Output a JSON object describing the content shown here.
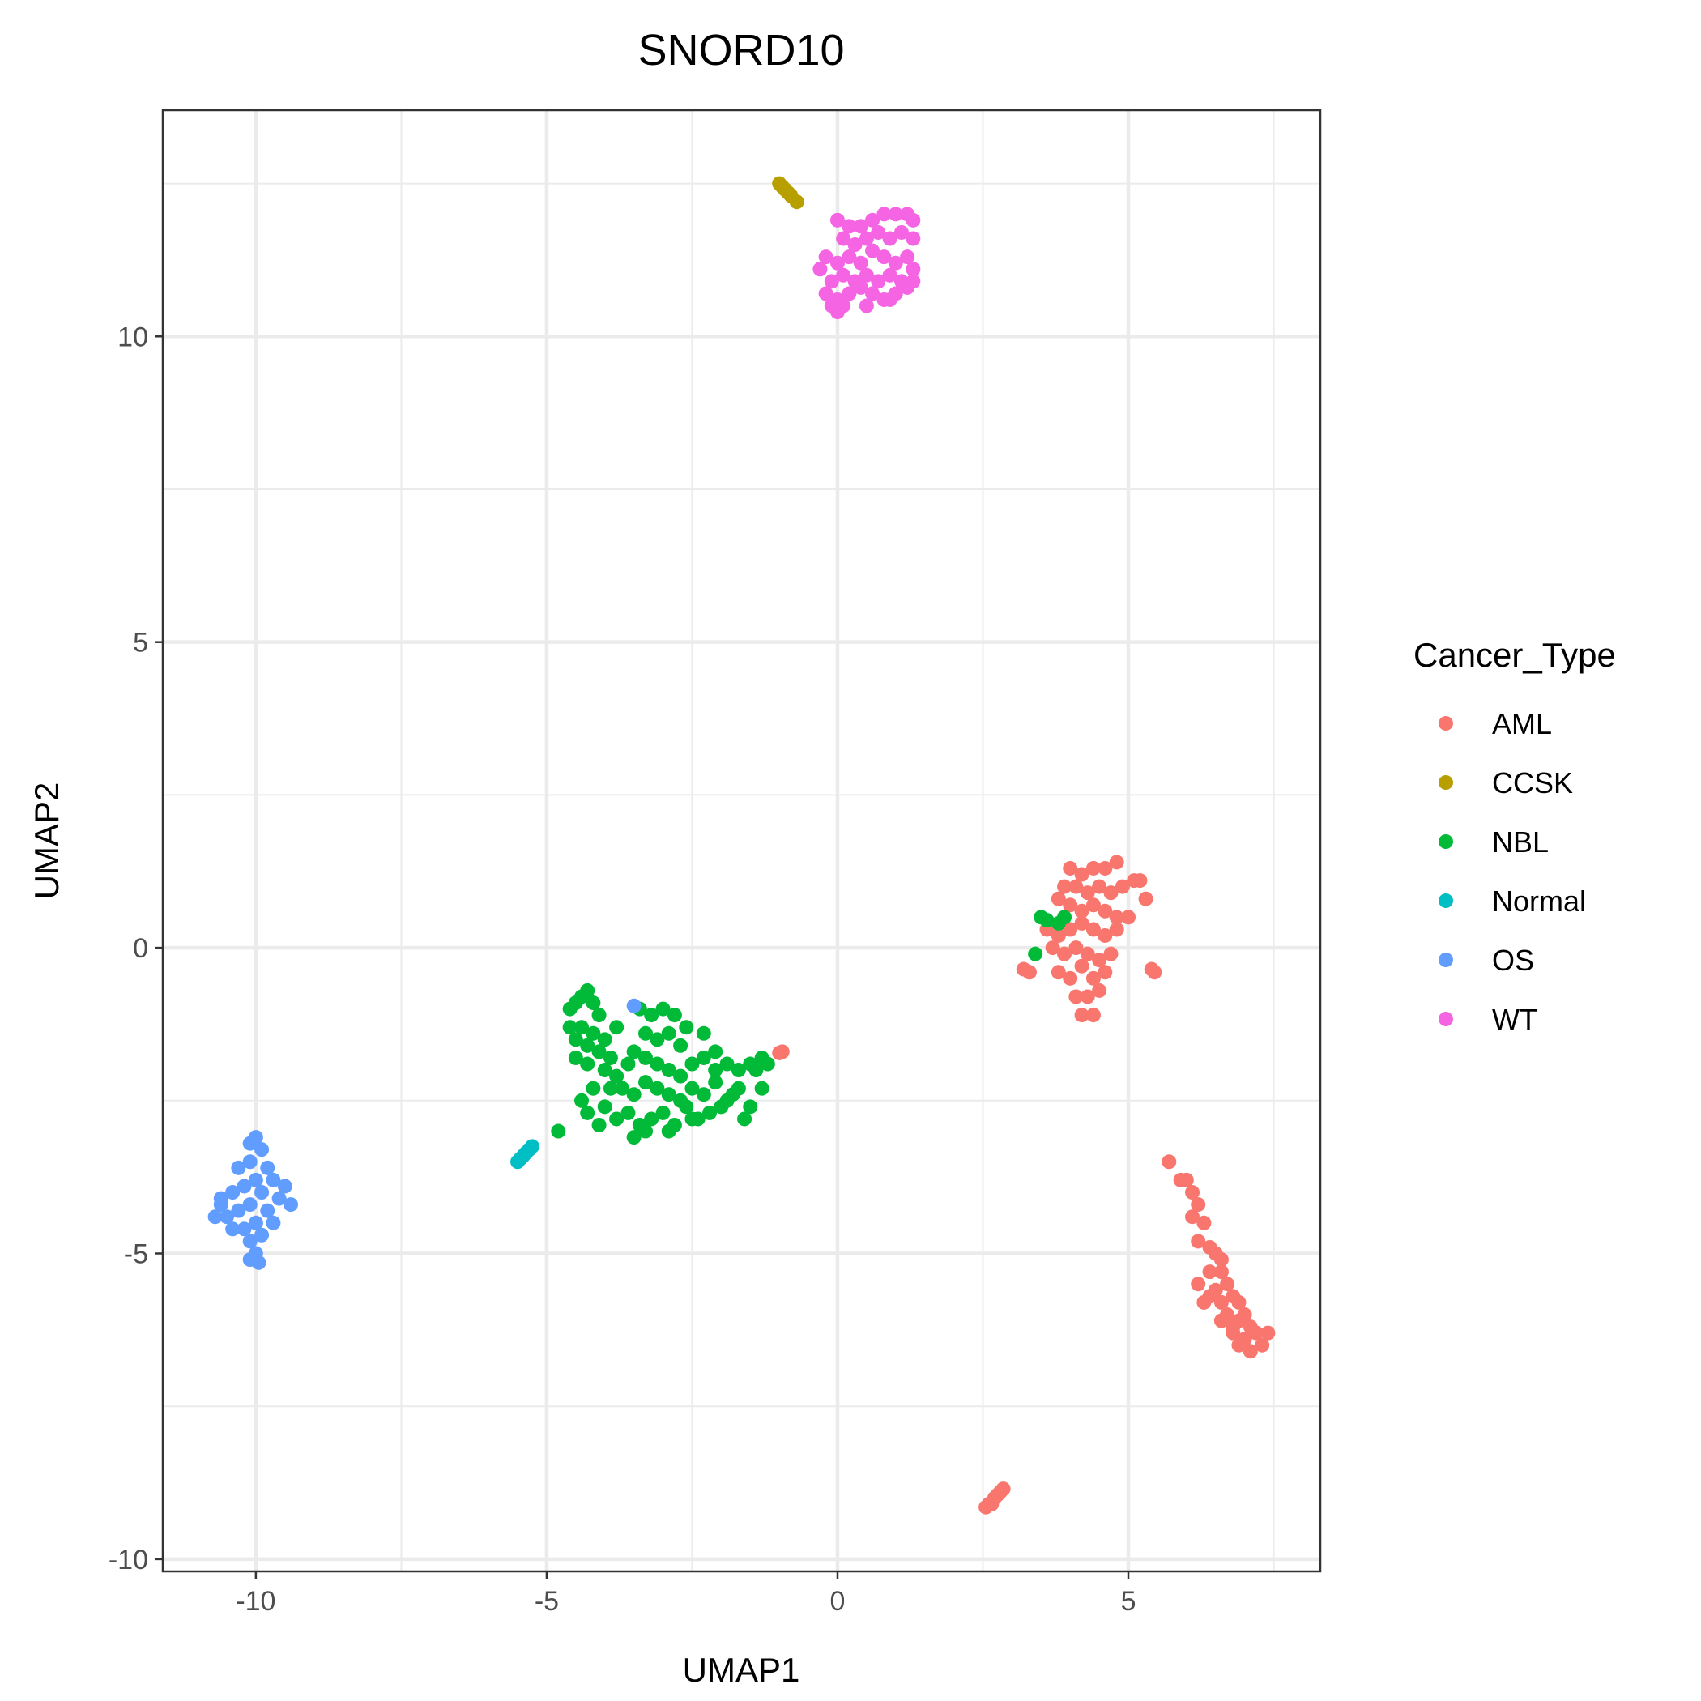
{
  "chart_data": {
    "type": "scatter",
    "title": "SNORD10",
    "xlabel": "UMAP1",
    "ylabel": "UMAP2",
    "xlim": [
      -11.6,
      8.3
    ],
    "ylim": [
      -10.2,
      13.7
    ],
    "x_ticks": [
      -10,
      -5,
      0,
      5
    ],
    "y_ticks": [
      -10,
      -5,
      0,
      5,
      10
    ],
    "x_tick_labels": [
      "-10",
      "-5",
      "0",
      "5"
    ],
    "y_tick_labels": [
      "-10",
      "-5",
      "0",
      "5",
      "10"
    ],
    "grid": true,
    "legend": {
      "title": "Cancer_Type",
      "position": "right"
    },
    "series": [
      {
        "name": "AML",
        "color": "#F8766D",
        "points": [
          [
            4.0,
            1.3
          ],
          [
            4.2,
            1.2
          ],
          [
            4.4,
            1.3
          ],
          [
            4.6,
            1.3
          ],
          [
            4.8,
            1.4
          ],
          [
            3.9,
            1.0
          ],
          [
            4.1,
            1.0
          ],
          [
            4.3,
            0.9
          ],
          [
            4.5,
            1.0
          ],
          [
            4.7,
            0.9
          ],
          [
            4.9,
            1.0
          ],
          [
            5.1,
            1.1
          ],
          [
            3.8,
            0.8
          ],
          [
            4.0,
            0.7
          ],
          [
            4.2,
            0.6
          ],
          [
            4.4,
            0.7
          ],
          [
            4.6,
            0.6
          ],
          [
            4.8,
            0.5
          ],
          [
            5.0,
            0.5
          ],
          [
            3.6,
            0.3
          ],
          [
            3.8,
            0.2
          ],
          [
            4.0,
            0.3
          ],
          [
            4.2,
            0.4
          ],
          [
            4.4,
            0.3
          ],
          [
            4.6,
            0.2
          ],
          [
            4.8,
            0.3
          ],
          [
            3.7,
            0.0
          ],
          [
            3.9,
            -0.1
          ],
          [
            4.1,
            0.0
          ],
          [
            4.3,
            -0.1
          ],
          [
            4.5,
            -0.2
          ],
          [
            4.7,
            -0.1
          ],
          [
            3.8,
            -0.4
          ],
          [
            4.0,
            -0.5
          ],
          [
            4.2,
            -0.3
          ],
          [
            4.4,
            -0.5
          ],
          [
            4.6,
            -0.4
          ],
          [
            4.1,
            -0.8
          ],
          [
            4.3,
            -0.8
          ],
          [
            4.5,
            -0.7
          ],
          [
            4.2,
            -1.1
          ],
          [
            4.4,
            -1.1
          ],
          [
            3.3,
            -0.4
          ],
          [
            3.2,
            -0.35
          ],
          [
            5.4,
            -0.35
          ],
          [
            5.45,
            -0.4
          ],
          [
            5.3,
            0.8
          ],
          [
            5.2,
            1.1
          ],
          [
            5.7,
            -3.5
          ],
          [
            5.9,
            -3.8
          ],
          [
            6.0,
            -3.8
          ],
          [
            6.1,
            -4.0
          ],
          [
            6.2,
            -4.2
          ],
          [
            6.1,
            -4.4
          ],
          [
            6.3,
            -4.5
          ],
          [
            6.2,
            -4.8
          ],
          [
            6.4,
            -4.9
          ],
          [
            6.5,
            -5.0
          ],
          [
            6.4,
            -5.3
          ],
          [
            6.6,
            -5.3
          ],
          [
            6.5,
            -5.6
          ],
          [
            6.7,
            -5.5
          ],
          [
            6.6,
            -5.8
          ],
          [
            6.8,
            -5.7
          ],
          [
            6.9,
            -5.8
          ],
          [
            6.7,
            -6.0
          ],
          [
            6.9,
            -6.1
          ],
          [
            7.0,
            -6.0
          ],
          [
            7.1,
            -6.2
          ],
          [
            6.8,
            -6.3
          ],
          [
            7.0,
            -6.4
          ],
          [
            7.2,
            -6.3
          ],
          [
            7.3,
            -6.5
          ],
          [
            7.1,
            -6.6
          ],
          [
            6.9,
            -6.5
          ],
          [
            7.4,
            -6.3
          ],
          [
            6.6,
            -6.1
          ],
          [
            6.3,
            -5.8
          ],
          [
            6.2,
            -5.5
          ],
          [
            6.6,
            -5.1
          ],
          [
            6.4,
            -5.7
          ],
          [
            6.8,
            -6.2
          ],
          [
            2.55,
            -9.15
          ],
          [
            2.6,
            -9.1
          ],
          [
            2.65,
            -9.1
          ],
          [
            2.7,
            -9.0
          ],
          [
            2.75,
            -8.95
          ],
          [
            2.8,
            -8.9
          ],
          [
            2.85,
            -8.85
          ],
          [
            -0.95,
            -1.7
          ],
          [
            -1.0,
            -1.72
          ]
        ]
      },
      {
        "name": "CCSK",
        "color": "#B79F00",
        "points": [
          [
            -1.0,
            12.5
          ],
          [
            -0.95,
            12.45
          ],
          [
            -0.9,
            12.4
          ],
          [
            -0.85,
            12.35
          ],
          [
            -0.8,
            12.3
          ],
          [
            -0.7,
            12.2
          ]
        ]
      },
      {
        "name": "NBL",
        "color": "#00BA38",
        "points": [
          [
            -4.6,
            -1.0
          ],
          [
            -4.5,
            -0.9
          ],
          [
            -4.4,
            -0.8
          ],
          [
            -4.3,
            -0.7
          ],
          [
            -4.2,
            -0.9
          ],
          [
            -4.6,
            -1.3
          ],
          [
            -4.5,
            -1.5
          ],
          [
            -4.4,
            -1.3
          ],
          [
            -4.3,
            -1.6
          ],
          [
            -4.2,
            -1.4
          ],
          [
            -4.1,
            -1.7
          ],
          [
            -4.0,
            -1.5
          ],
          [
            -3.9,
            -1.8
          ],
          [
            -3.8,
            -1.3
          ],
          [
            -4.5,
            -1.8
          ],
          [
            -4.3,
            -1.9
          ],
          [
            -4.0,
            -2.0
          ],
          [
            -3.8,
            -2.1
          ],
          [
            -3.6,
            -1.9
          ],
          [
            -3.4,
            -1.0
          ],
          [
            -3.2,
            -1.1
          ],
          [
            -3.0,
            -1.0
          ],
          [
            -2.8,
            -1.1
          ],
          [
            -3.3,
            -1.4
          ],
          [
            -3.1,
            -1.5
          ],
          [
            -2.9,
            -1.4
          ],
          [
            -2.7,
            -1.6
          ],
          [
            -3.5,
            -1.7
          ],
          [
            -3.3,
            -1.8
          ],
          [
            -3.1,
            -1.9
          ],
          [
            -2.9,
            -2.0
          ],
          [
            -2.7,
            -2.1
          ],
          [
            -2.5,
            -1.9
          ],
          [
            -2.3,
            -1.8
          ],
          [
            -2.1,
            -1.7
          ],
          [
            -1.9,
            -1.9
          ],
          [
            -1.7,
            -2.0
          ],
          [
            -1.5,
            -1.9
          ],
          [
            -1.3,
            -1.8
          ],
          [
            -1.2,
            -1.9
          ],
          [
            -3.7,
            -2.3
          ],
          [
            -3.5,
            -2.4
          ],
          [
            -3.3,
            -2.2
          ],
          [
            -3.1,
            -2.3
          ],
          [
            -2.9,
            -2.4
          ],
          [
            -2.7,
            -2.5
          ],
          [
            -2.5,
            -2.3
          ],
          [
            -2.3,
            -2.4
          ],
          [
            -2.1,
            -2.2
          ],
          [
            -1.9,
            -2.5
          ],
          [
            -1.7,
            -2.3
          ],
          [
            -1.5,
            -2.6
          ],
          [
            -1.3,
            -2.3
          ],
          [
            -1.4,
            -2.0
          ],
          [
            -4.0,
            -2.6
          ],
          [
            -3.8,
            -2.8
          ],
          [
            -3.6,
            -2.7
          ],
          [
            -3.4,
            -2.9
          ],
          [
            -3.2,
            -2.8
          ],
          [
            -3.0,
            -2.7
          ],
          [
            -2.8,
            -2.9
          ],
          [
            -2.6,
            -2.6
          ],
          [
            -2.4,
            -2.8
          ],
          [
            -2.2,
            -2.7
          ],
          [
            -2.0,
            -2.6
          ],
          [
            -1.8,
            -2.4
          ],
          [
            -1.6,
            -2.8
          ],
          [
            -3.3,
            -3.0
          ],
          [
            -2.9,
            -3.0
          ],
          [
            -2.5,
            -2.8
          ],
          [
            -4.2,
            -2.3
          ],
          [
            -4.4,
            -2.5
          ],
          [
            -4.3,
            -2.7
          ],
          [
            -4.1,
            -2.9
          ],
          [
            -3.5,
            -3.1
          ],
          [
            -2.3,
            -1.4
          ],
          [
            -2.6,
            -1.3
          ],
          [
            -4.1,
            -1.1
          ],
          [
            -3.9,
            -2.3
          ],
          [
            -2.1,
            -2.0
          ],
          [
            3.5,
            0.5
          ],
          [
            3.6,
            0.45
          ],
          [
            3.4,
            -0.1
          ],
          [
            3.9,
            0.5
          ],
          [
            3.8,
            0.4
          ],
          [
            -4.8,
            -3.0
          ]
        ]
      },
      {
        "name": "Normal",
        "color": "#00BFC4",
        "points": [
          [
            -5.5,
            -3.5
          ],
          [
            -5.45,
            -3.45
          ],
          [
            -5.4,
            -3.4
          ],
          [
            -5.35,
            -3.35
          ],
          [
            -5.3,
            -3.3
          ],
          [
            -5.25,
            -3.25
          ]
        ]
      },
      {
        "name": "OS",
        "color": "#619CFF",
        "points": [
          [
            -10.0,
            -3.1
          ],
          [
            -10.1,
            -3.2
          ],
          [
            -9.9,
            -3.3
          ],
          [
            -10.1,
            -3.5
          ],
          [
            -9.8,
            -3.6
          ],
          [
            -10.3,
            -3.6
          ],
          [
            -10.0,
            -3.8
          ],
          [
            -9.7,
            -3.8
          ],
          [
            -9.5,
            -3.9
          ],
          [
            -10.2,
            -3.9
          ],
          [
            -9.9,
            -4.0
          ],
          [
            -10.4,
            -4.0
          ],
          [
            -10.6,
            -4.1
          ],
          [
            -9.6,
            -4.1
          ],
          [
            -10.1,
            -4.2
          ],
          [
            -10.3,
            -4.3
          ],
          [
            -9.8,
            -4.3
          ],
          [
            -9.4,
            -4.2
          ],
          [
            -10.5,
            -4.4
          ],
          [
            -10.7,
            -4.4
          ],
          [
            -10.0,
            -4.5
          ],
          [
            -10.2,
            -4.6
          ],
          [
            -10.4,
            -4.6
          ],
          [
            -9.9,
            -4.7
          ],
          [
            -10.1,
            -4.8
          ],
          [
            -10.0,
            -5.0
          ],
          [
            -10.1,
            -5.1
          ],
          [
            -9.95,
            -5.15
          ],
          [
            -9.7,
            -4.5
          ],
          [
            -10.6,
            -4.2
          ],
          [
            -3.5,
            -0.95
          ]
        ]
      },
      {
        "name": "WT",
        "color": "#F564E3",
        "points": [
          [
            0.0,
            11.9
          ],
          [
            0.2,
            11.8
          ],
          [
            0.4,
            11.8
          ],
          [
            0.6,
            11.9
          ],
          [
            0.8,
            12.0
          ],
          [
            1.0,
            12.0
          ],
          [
            1.2,
            12.0
          ],
          [
            1.3,
            11.9
          ],
          [
            0.1,
            11.6
          ],
          [
            0.3,
            11.5
          ],
          [
            0.5,
            11.6
          ],
          [
            0.7,
            11.7
          ],
          [
            0.9,
            11.6
          ],
          [
            1.1,
            11.7
          ],
          [
            1.3,
            11.6
          ],
          [
            -0.2,
            11.3
          ],
          [
            0.0,
            11.2
          ],
          [
            0.2,
            11.3
          ],
          [
            0.4,
            11.2
          ],
          [
            0.6,
            11.4
          ],
          [
            0.8,
            11.3
          ],
          [
            1.0,
            11.2
          ],
          [
            1.2,
            11.3
          ],
          [
            1.3,
            11.1
          ],
          [
            -0.3,
            11.1
          ],
          [
            -0.1,
            10.9
          ],
          [
            0.1,
            11.0
          ],
          [
            0.3,
            10.9
          ],
          [
            0.5,
            11.0
          ],
          [
            0.7,
            10.9
          ],
          [
            0.9,
            11.0
          ],
          [
            1.1,
            10.9
          ],
          [
            1.3,
            10.9
          ],
          [
            -0.2,
            10.7
          ],
          [
            0.0,
            10.6
          ],
          [
            0.2,
            10.7
          ],
          [
            0.4,
            10.8
          ],
          [
            0.6,
            10.7
          ],
          [
            0.8,
            10.6
          ],
          [
            1.0,
            10.7
          ],
          [
            0.0,
            10.4
          ],
          [
            0.1,
            10.5
          ],
          [
            -0.1,
            10.5
          ],
          [
            0.5,
            10.5
          ],
          [
            0.9,
            10.6
          ],
          [
            1.2,
            10.8
          ]
        ]
      }
    ]
  }
}
